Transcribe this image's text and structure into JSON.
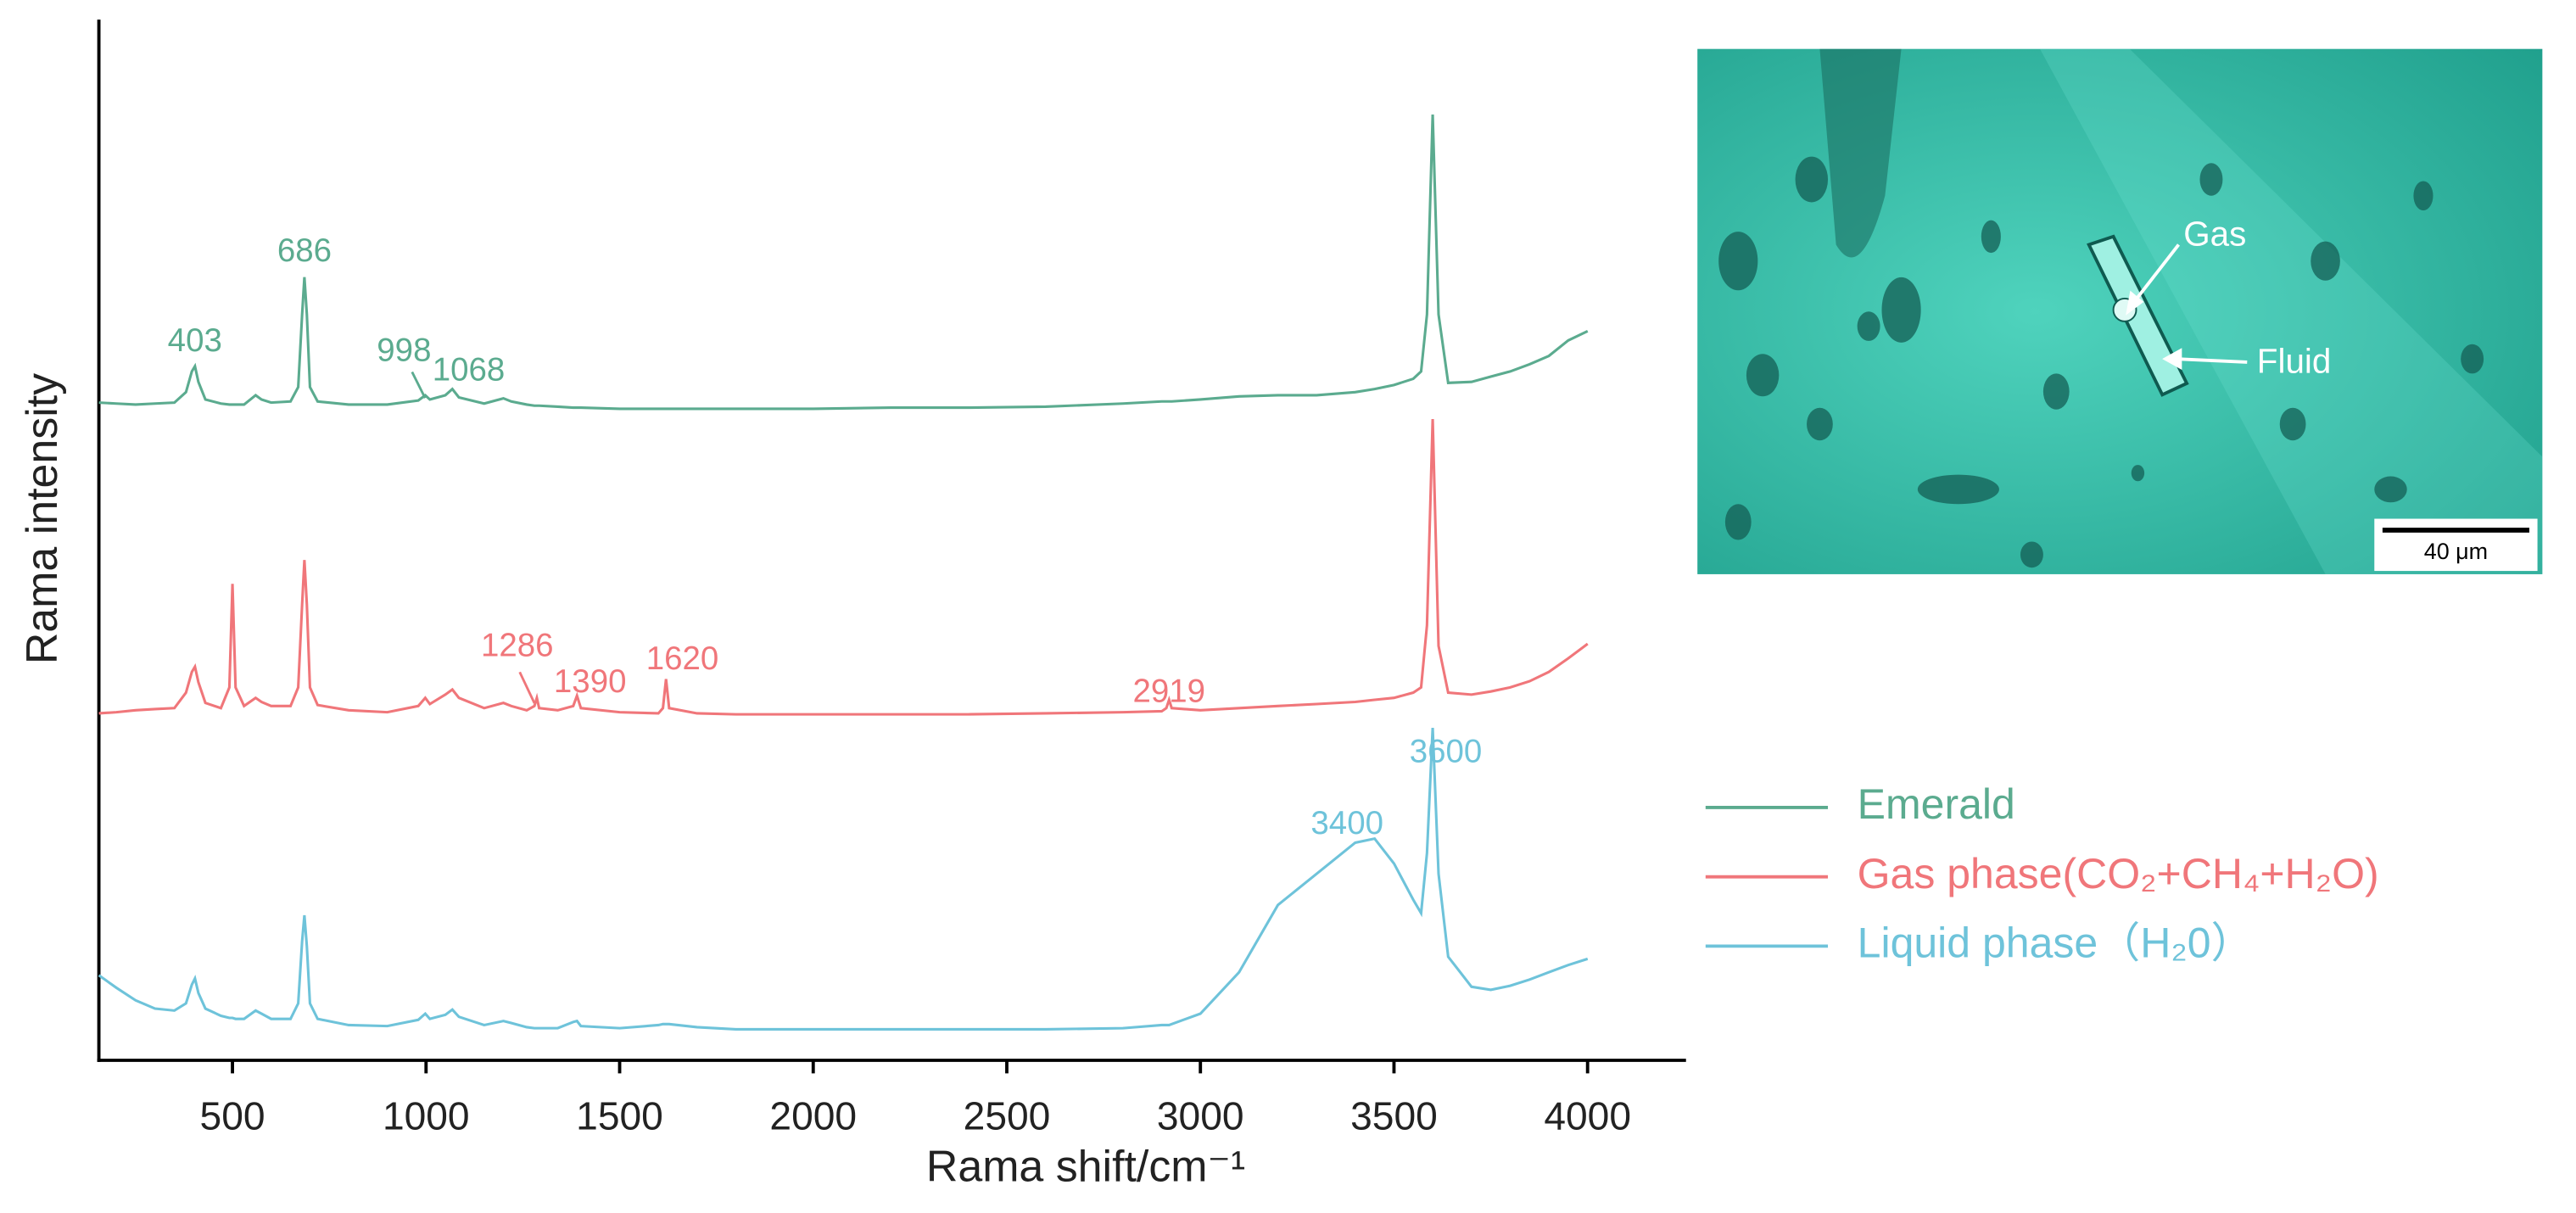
{
  "chart_data": {
    "type": "line",
    "x_label": "Rama shift/cm⁻¹",
    "y_label": "Rama intensity",
    "xlim": [
      155,
      4250
    ],
    "ylim": [
      0,
      100
    ],
    "xticks": [
      500,
      1000,
      1500,
      2000,
      2500,
      3000,
      3500,
      4000
    ],
    "x": [
      155,
      200,
      250,
      300,
      350,
      380,
      395,
      403,
      412,
      430,
      470,
      492,
      500,
      508,
      530,
      560,
      575,
      600,
      650,
      670,
      680,
      686,
      692,
      700,
      720,
      800,
      900,
      980,
      998,
      1010,
      1050,
      1068,
      1085,
      1150,
      1200,
      1220,
      1260,
      1280,
      1286,
      1292,
      1340,
      1380,
      1390,
      1400,
      1500,
      1600,
      1612,
      1620,
      1628,
      1700,
      1800,
      2000,
      2200,
      2400,
      2600,
      2800,
      2900,
      2912,
      2919,
      2926,
      3000,
      3100,
      3200,
      3300,
      3400,
      3450,
      3500,
      3550,
      3570,
      3585,
      3600,
      3615,
      3640,
      3700,
      3750,
      3800,
      3850,
      3900,
      3950,
      4000
    ],
    "series": [
      {
        "name": "Emerald",
        "color": "#5bab8f",
        "peak_labels": [
          403,
          686,
          998,
          1068
        ],
        "values": [
          63.5,
          63.4,
          63.3,
          63.4,
          63.5,
          64.5,
          66.5,
          67.0,
          65.5,
          63.8,
          63.4,
          63.3,
          63.3,
          63.3,
          63.3,
          64.2,
          63.8,
          63.5,
          63.6,
          65,
          72,
          75.6,
          72,
          65,
          63.6,
          63.3,
          63.3,
          63.7,
          64.2,
          63.8,
          64.2,
          64.8,
          64.0,
          63.4,
          63.9,
          63.6,
          63.3,
          63.2,
          63.2,
          63.2,
          63.1,
          63.0,
          63.0,
          63.0,
          62.9,
          62.9,
          62.9,
          62.9,
          62.9,
          62.9,
          62.9,
          62.9,
          63.0,
          63.0,
          63.1,
          63.4,
          63.6,
          63.6,
          63.6,
          63.6,
          63.8,
          64.1,
          64.2,
          64.2,
          64.5,
          64.8,
          65.2,
          65.8,
          66.5,
          72,
          91.3,
          72,
          65.4,
          65.5,
          66.0,
          66.5,
          67.2,
          68.0,
          69.5,
          70.4
        ]
      },
      {
        "name": "Gas phase(CO₂+CH₄+H₂O)",
        "color": "#f0767a",
        "peak_labels": [
          1286,
          1390,
          1620,
          2919
        ],
        "values": [
          33.5,
          33.6,
          33.8,
          33.9,
          34.0,
          35.5,
          37.5,
          38.0,
          36.5,
          34.5,
          34.0,
          36,
          46.0,
          36,
          34.2,
          35.0,
          34.6,
          34.2,
          34.2,
          36,
          44,
          48.3,
          44,
          36,
          34.3,
          33.8,
          33.6,
          34.2,
          35.0,
          34.4,
          35.3,
          35.8,
          35.0,
          34.0,
          34.5,
          34.2,
          33.8,
          34.2,
          35.0,
          34.0,
          33.8,
          34.2,
          35.2,
          34.0,
          33.6,
          33.5,
          34.0,
          36.8,
          34.0,
          33.5,
          33.4,
          33.4,
          33.4,
          33.4,
          33.5,
          33.6,
          33.7,
          34.0,
          34.8,
          34.0,
          33.8,
          34.0,
          34.2,
          34.4,
          34.6,
          34.8,
          35.0,
          35.5,
          36,
          42,
          61.9,
          40,
          35.5,
          35.3,
          35.6,
          36.0,
          36.6,
          37.5,
          38.8,
          40.2
        ]
      },
      {
        "name": "Liquid phase（H₂0）",
        "color": "#6ec3da",
        "peak_labels": [
          3400,
          3600
        ],
        "values": [
          8.2,
          7.0,
          5.8,
          5.0,
          4.8,
          5.5,
          7.3,
          7.9,
          6.5,
          5.0,
          4.3,
          4.1,
          4.1,
          4.0,
          4.0,
          4.8,
          4.5,
          4.0,
          4.0,
          5.5,
          11.5,
          14.0,
          11,
          5.5,
          4.0,
          3.4,
          3.3,
          3.9,
          4.5,
          4.0,
          4.4,
          4.9,
          4.2,
          3.4,
          3.8,
          3.6,
          3.2,
          3.1,
          3.1,
          3.1,
          3.1,
          3.7,
          3.8,
          3.3,
          3.1,
          3.4,
          3.5,
          3.5,
          3.5,
          3.2,
          3.0,
          3.0,
          3.0,
          3.0,
          3.0,
          3.1,
          3.4,
          3.4,
          3.4,
          3.5,
          4.5,
          8.5,
          15,
          18.0,
          21.0,
          21.4,
          19,
          15.5,
          14.2,
          20,
          32.1,
          18,
          10,
          7.1,
          6.8,
          7.2,
          7.8,
          8.5,
          9.2,
          9.8
        ]
      }
    ]
  },
  "inset": {
    "labels": [
      "Gas",
      "Fluid"
    ],
    "scale_bar": "40 μm"
  }
}
